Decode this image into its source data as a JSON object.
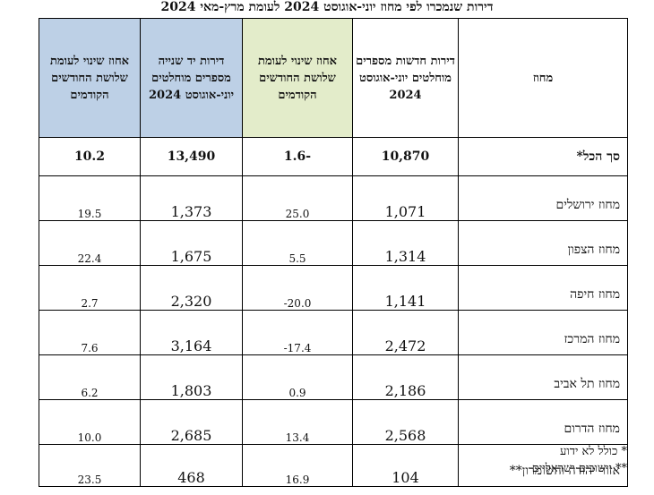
{
  "title": "דירות שנמכרו לפי מחוז יוני-אוגוסט 2024 לעומת מרץ-מאי 2024",
  "headers": {
    "district": "מחוז",
    "new_sold": "דירות חדשות מספרים מוחלטים יוני-אוגוסט 2024",
    "new_change": "אחוז שינוי לעומת שלושת החודשים הקודמים",
    "second_sold": "דירות יד שנייה מספרים מוחלטים יוני-אוגוסט 2024",
    "second_change": "אחוז שינוי לעומת שלושת החודשים הקודמים"
  },
  "total": {
    "district": "סך הכל*",
    "new_sold": "10,870",
    "new_change": "-1.6",
    "second_sold": "13,490",
    "second_change": "10.2"
  },
  "rows": [
    {
      "district": "מחוז ירושלים",
      "new_sold": "1,071",
      "new_change": "25.0",
      "second_sold": "1,373",
      "second_change": "19.5"
    },
    {
      "district": "מחוז הצפון",
      "new_sold": "1,314",
      "new_change": "5.5",
      "second_sold": "1,675",
      "second_change": "22.4"
    },
    {
      "district": "מחוז חיפה",
      "new_sold": "1,141",
      "new_change": "20.0-",
      "second_sold": "2,320",
      "second_change": "2.7"
    },
    {
      "district": "מחוז המרכז",
      "new_sold": "2,472",
      "new_change": "17.4-",
      "second_sold": "3,164",
      "second_change": "7.6"
    },
    {
      "district": "מחוז תל אביב",
      "new_sold": "2,186",
      "new_change": "0.9",
      "second_sold": "1,803",
      "second_change": "6.2"
    },
    {
      "district": "מחוז הדרום",
      "new_sold": "2,568",
      "new_change": "13.4",
      "second_sold": "2,685",
      "second_change": "10.0"
    },
    {
      "district": "אזור יהודה והשומרון**",
      "new_sold": "104",
      "new_change": "16.9",
      "second_sold": "468",
      "second_change": "23.5"
    }
  ],
  "footnotes": {
    "note1": "* כולל לא ידוע",
    "note2": "** יישובים ישראליים"
  },
  "colors": {
    "green_header": "#e3ecca",
    "blue_header": "#bdd0e6"
  }
}
